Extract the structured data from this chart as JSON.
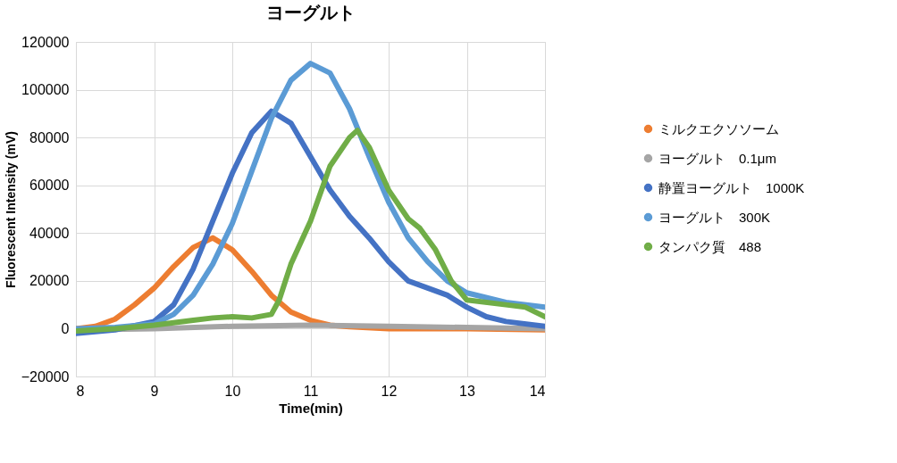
{
  "chart_data": {
    "type": "line",
    "title": "ヨーグルト",
    "xlabel": "Time(min)",
    "ylabel": "Fluorescent Intensity (mV)",
    "xlim": [
      8,
      14
    ],
    "xticks": [
      8,
      9,
      10,
      11,
      12,
      13,
      14
    ],
    "ylim": [
      -20000,
      120000
    ],
    "yticks": [
      -20000,
      0,
      20000,
      40000,
      60000,
      80000,
      100000,
      120000
    ],
    "grid": true,
    "legend": "right",
    "series": [
      {
        "name": "ミルクエクソソーム",
        "color": "#ed7d31",
        "x": [
          8,
          8.25,
          8.5,
          8.75,
          9,
          9.25,
          9.5,
          9.75,
          10,
          10.25,
          10.5,
          10.75,
          11,
          11.25,
          11.5,
          12,
          13,
          14
        ],
        "values": [
          0,
          1000,
          4000,
          10000,
          17000,
          26000,
          34000,
          38000,
          33000,
          24000,
          14000,
          7000,
          3500,
          1500,
          800,
          0,
          0,
          -500
        ]
      },
      {
        "name": "ヨーグルト　0.1μm",
        "color": "#a5a5a5",
        "x": [
          8,
          9,
          10,
          11,
          12,
          13,
          14
        ],
        "values": [
          -500,
          0,
          1000,
          1500,
          1000,
          500,
          0
        ]
      },
      {
        "name": "静置ヨーグルト　1000K",
        "color": "#4472c4",
        "x": [
          8,
          8.5,
          9,
          9.25,
          9.5,
          9.75,
          10,
          10.25,
          10.5,
          10.75,
          11,
          11.25,
          11.5,
          11.75,
          12,
          12.25,
          12.5,
          12.75,
          13,
          13.25,
          13.5,
          14
        ],
        "values": [
          -2000,
          -500,
          3000,
          10000,
          25000,
          45000,
          65000,
          82000,
          91000,
          86000,
          72000,
          58000,
          47000,
          38000,
          28000,
          20000,
          17000,
          14000,
          9000,
          5000,
          3000,
          1000
        ]
      },
      {
        "name": "ヨーグルト　300K",
        "color": "#5b9bd5",
        "x": [
          8,
          8.5,
          9,
          9.25,
          9.5,
          9.75,
          10,
          10.25,
          10.5,
          10.75,
          11,
          11.25,
          11.5,
          11.75,
          12,
          12.25,
          12.5,
          12.75,
          13,
          13.5,
          14
        ],
        "values": [
          0,
          500,
          2000,
          6000,
          14000,
          27000,
          44000,
          66000,
          88000,
          104000,
          111000,
          107000,
          92000,
          72000,
          53000,
          38000,
          28000,
          20000,
          15000,
          11000,
          9000
        ]
      },
      {
        "name": "タンパク質　488",
        "color": "#70ad47",
        "x": [
          8,
          8.5,
          9,
          9.5,
          9.75,
          10,
          10.25,
          10.5,
          10.6,
          10.75,
          11,
          11.25,
          11.5,
          11.6,
          11.75,
          12,
          12.25,
          12.4,
          12.6,
          12.8,
          13,
          13.5,
          13.75,
          14
        ],
        "values": [
          -1000,
          0,
          1500,
          3500,
          4500,
          5000,
          4500,
          6000,
          12000,
          27000,
          45000,
          68000,
          80000,
          83000,
          76000,
          58000,
          46000,
          42000,
          33000,
          20000,
          12000,
          10000,
          9000,
          5000
        ]
      }
    ]
  }
}
